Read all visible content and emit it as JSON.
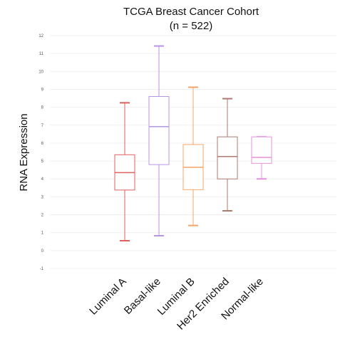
{
  "chart_data": {
    "type": "box",
    "title": "TCGA Breast Cancer Cohort",
    "subtitle": "(n = 522)",
    "xlabel": "",
    "ylabel": "RNA Expression",
    "ylim": [
      -1,
      12
    ],
    "yticks": [
      "-1",
      "0",
      "1",
      "2",
      "3",
      "4",
      "5",
      "6",
      "7",
      "8",
      "9",
      "10",
      "11",
      "12"
    ],
    "grid": true,
    "categories": [
      "Luminal A",
      "Basal-like",
      "Luminal B",
      "Her2 Enriched",
      "Normal-like"
    ],
    "series": [
      {
        "name": "Luminal A",
        "color": "#e0605e",
        "whisker_low": 0.55,
        "q1": 3.38,
        "median": 4.35,
        "q3": 5.35,
        "whisker_high": 8.25
      },
      {
        "name": "Basal-like",
        "color": "#b694e6",
        "whisker_low": 0.83,
        "q1": 4.8,
        "median": 6.92,
        "q3": 8.6,
        "whisker_high": 11.42
      },
      {
        "name": "Luminal B",
        "color": "#f6a469",
        "whisker_low": 1.4,
        "q1": 3.4,
        "median": 4.65,
        "q3": 5.92,
        "whisker_high": 9.12
      },
      {
        "name": "Her2 Enriched",
        "color": "#b07a72",
        "whisker_low": 2.22,
        "q1": 4.0,
        "median": 5.25,
        "q3": 6.35,
        "whisker_high": 8.48
      },
      {
        "name": "Normal-like",
        "color": "#e791dc",
        "whisker_low": 4.0,
        "q1": 4.87,
        "median": 5.2,
        "q3": 6.35,
        "whisker_high": 6.35
      }
    ]
  }
}
